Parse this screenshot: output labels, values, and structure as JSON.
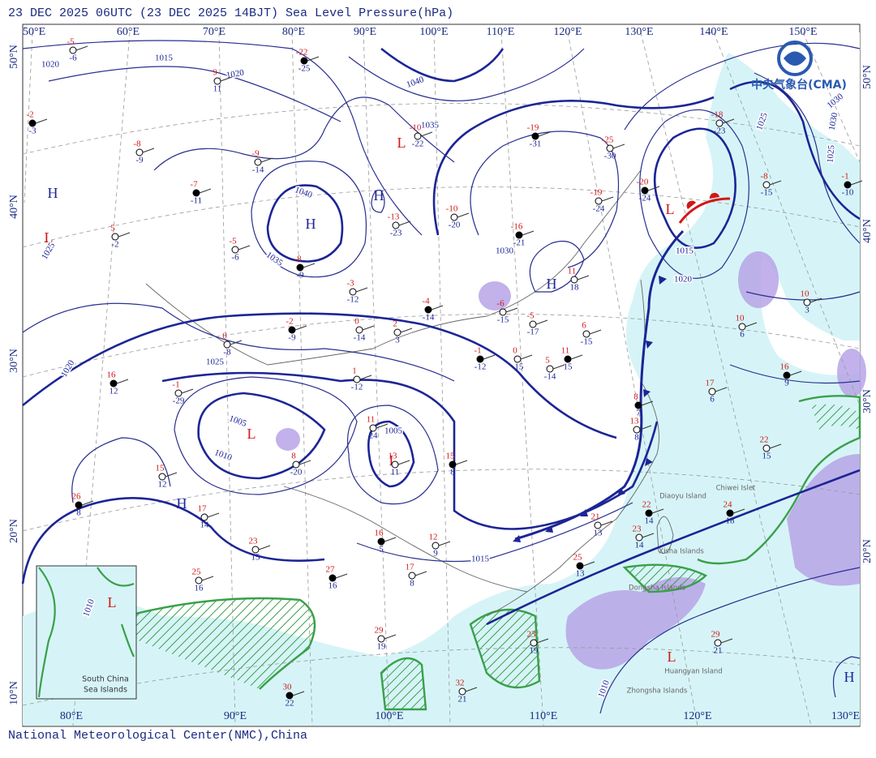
{
  "header": {
    "title": "23 DEC 2025 06UTC  (23 DEC 2025 14BJT) Sea Level Pressure(hPa)"
  },
  "footer": {
    "credit": "National Meteorological Center(NMC),China"
  },
  "logo": {
    "text": "中央气象台(CMA)"
  },
  "lon_labels_top": [
    "50°E",
    "60°E",
    "70°E",
    "80°E",
    "90°E",
    "100°E",
    "110°E",
    "120°E",
    "130°E",
    "140°E",
    "150°E"
  ],
  "lon_labels_bottom": [
    "80°E",
    "90°E",
    "100°E",
    "110°E",
    "120°E",
    "130°E"
  ],
  "lat_labels_left": [
    "50°N",
    "40°N",
    "30°N",
    "20°N",
    "10°N"
  ],
  "lat_labels_right": [
    "50°N",
    "40°N",
    "30°N",
    "20°N"
  ],
  "pressure_centers": [
    "H",
    "L",
    "H",
    "H",
    "L",
    "L",
    "L",
    "H",
    "L",
    "H",
    "L",
    "H",
    "L"
  ],
  "isobar_labels": [
    "1015",
    "1020",
    "1040",
    "1035",
    "1030",
    "1025",
    "1040",
    "1035",
    "1025",
    "1020",
    "1025",
    "1005",
    "1010",
    "1005",
    "1015",
    "1030",
    "1015",
    "1020",
    "1010",
    "1010",
    "1020",
    "1025",
    "1030"
  ],
  "place_labels": [
    "Diaoyu Island",
    "Chiwei Islet",
    "Dongsha Islands",
    "Huangyan Island",
    "Zhongsha Islands",
    "Xisha Islands"
  ],
  "inset_label": [
    "South China",
    "Sea Islands"
  ],
  "stations": [
    {
      "temp": -22,
      "dew": -25
    },
    {
      "temp": 9,
      "dew": 11
    },
    {
      "temp": -5,
      "dew": -6
    },
    {
      "temp": -2,
      "dew": -3
    },
    {
      "temp": -8,
      "dew": -9
    },
    {
      "temp": -9,
      "dew": -14
    },
    {
      "temp": -7,
      "dew": -11
    },
    {
      "temp": 5,
      "dew": -2
    },
    {
      "temp": -5,
      "dew": -6
    },
    {
      "temp": -8,
      "dew": -9
    },
    {
      "temp": -3,
      "dew": -12
    },
    {
      "temp": 0,
      "dew": -14
    },
    {
      "temp": -2,
      "dew": -9
    },
    {
      "temp": 0,
      "dew": -8
    },
    {
      "temp": 2,
      "dew": 3
    },
    {
      "temp": -4,
      "dew": -14
    },
    {
      "temp": -6,
      "dew": -15
    },
    {
      "temp": -5,
      "dew": -17
    },
    {
      "temp": -1,
      "dew": -12
    },
    {
      "temp": 0,
      "dew": -15
    },
    {
      "temp": 5,
      "dew": -14
    },
    {
      "temp": 11,
      "dew": 15
    },
    {
      "temp": 6,
      "dew": -15
    },
    {
      "temp": 1,
      "dew": -12
    },
    {
      "temp": 16,
      "dew": 12
    },
    {
      "temp": -1,
      "dew": -29
    },
    {
      "temp": -10,
      "dew": -20
    },
    {
      "temp": -16,
      "dew": -21
    },
    {
      "temp": -13,
      "dew": -23
    },
    {
      "temp": -10,
      "dew": -22
    },
    {
      "temp": -19,
      "dew": -31
    },
    {
      "temp": -25,
      "dew": -30
    },
    {
      "temp": -19,
      "dew": -24
    },
    {
      "temp": -20,
      "dew": -24
    },
    {
      "temp": -18,
      "dew": -23
    },
    {
      "temp": -8,
      "dew": -15
    },
    {
      "temp": -1,
      "dew": -10
    },
    {
      "temp": 10,
      "dew": 3
    },
    {
      "temp": 10,
      "dew": 6
    },
    {
      "temp": 16,
      "dew": 9
    },
    {
      "temp": 17,
      "dew": 6
    },
    {
      "temp": 22,
      "dew": 15
    },
    {
      "temp": 24,
      "dew": 18
    },
    {
      "temp": 11,
      "dew": 24
    },
    {
      "temp": 13,
      "dew": 11
    },
    {
      "temp": 15,
      "dew": 8
    },
    {
      "temp": 8,
      "dew": -20
    },
    {
      "temp": 15,
      "dew": 12
    },
    {
      "temp": 26,
      "dew": 8
    },
    {
      "temp": 17,
      "dew": 14
    },
    {
      "temp": 23,
      "dew": 15
    },
    {
      "temp": 16,
      "dew": 5
    },
    {
      "temp": 12,
      "dew": 9
    },
    {
      "temp": 17,
      "dew": 8
    },
    {
      "temp": 27,
      "dew": 16
    },
    {
      "temp": 25,
      "dew": 16
    },
    {
      "temp": 29,
      "dew": 19
    },
    {
      "temp": 30,
      "dew": 22
    },
    {
      "temp": 32,
      "dew": 21
    },
    {
      "temp": 23,
      "dew": 19
    },
    {
      "temp": 25,
      "dew": 13
    },
    {
      "temp": 21,
      "dew": 13
    },
    {
      "temp": 23,
      "dew": 14
    },
    {
      "temp": 22,
      "dew": 14
    },
    {
      "temp": 29,
      "dew": 21
    },
    {
      "temp": 11,
      "dew": 18
    },
    {
      "temp": 8,
      "dew": 7
    },
    {
      "temp": 13,
      "dew": 8
    }
  ]
}
